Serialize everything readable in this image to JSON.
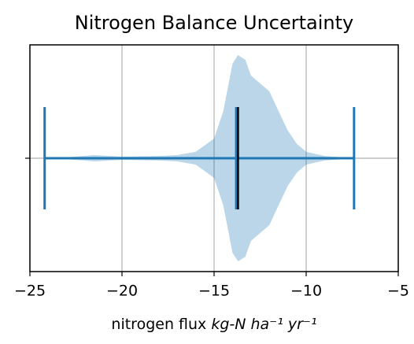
{
  "chart_data": {
    "type": "violin",
    "title": "Nitrogen Balance Uncertainty",
    "xlabel": {
      "text": "nitrogen flux",
      "unit": "kg-N ha⁻¹ yr⁻¹"
    },
    "xlim": [
      -25,
      -5
    ],
    "xticks": [
      {
        "value": -25,
        "label": "−25"
      },
      {
        "value": -20,
        "label": "−20"
      },
      {
        "value": -15,
        "label": "−15"
      },
      {
        "value": -10,
        "label": "−10"
      },
      {
        "value": -5,
        "label": "−5"
      }
    ],
    "ylim": [
      0.5,
      1.5
    ],
    "yticks": [
      1
    ],
    "grid": true,
    "color": "#1f77b4",
    "center_color": "#000000",
    "position": 1,
    "min": -24.2,
    "max": -7.4,
    "median": -13.8,
    "center": -13.7,
    "density": {
      "x": [
        -24.2,
        -23,
        -21.5,
        -20,
        -18,
        -17,
        -16,
        -15,
        -14.5,
        -14,
        -13.7,
        -13.3,
        -13,
        -12.5,
        -12,
        -11.5,
        -11,
        -10.5,
        -10,
        -9,
        -8,
        -7.4
      ],
      "widths": [
        0,
        0.004,
        0.014,
        0.007,
        0.01,
        0.014,
        0.028,
        0.087,
        0.208,
        0.417,
        0.455,
        0.434,
        0.365,
        0.33,
        0.295,
        0.208,
        0.122,
        0.063,
        0.028,
        0.01,
        0.004,
        0
      ]
    }
  }
}
